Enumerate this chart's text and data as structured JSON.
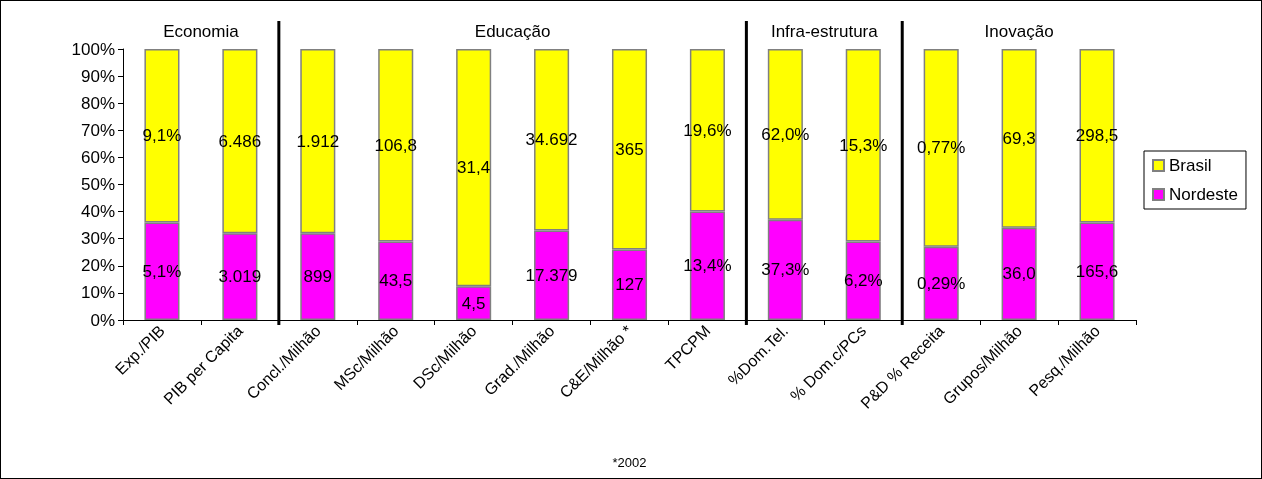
{
  "chart_data": {
    "type": "bar",
    "stacked": true,
    "categories": [
      "Exp./PIB",
      "PIB per Capita",
      "Concl./Milhão",
      "MSc/Milhão",
      "DSc/Milhão",
      "Grad./Milhão",
      "C&E/Milhão *",
      "TPCPM",
      "%Dom.Tel.",
      "% Dom.c/PCs",
      "P&D % Receita",
      "Grupos/Milhão",
      "Pesq./Milhão"
    ],
    "series": [
      {
        "name": "Nordeste",
        "color": "#ff00ff",
        "values": [
          36,
          32,
          32,
          29,
          12.5,
          33,
          26,
          40,
          37,
          29,
          27,
          34,
          36
        ]
      },
      {
        "name": "Brasil",
        "color": "#ffff00",
        "values": [
          64,
          68,
          68,
          71,
          87.5,
          67,
          74,
          60,
          63,
          71,
          73,
          66,
          64
        ]
      }
    ],
    "ylim": [
      0,
      100
    ],
    "yticks": [
      {
        "value": 0,
        "label": "0%"
      },
      {
        "value": 10,
        "label": "10%"
      },
      {
        "value": 20,
        "label": "20%"
      },
      {
        "value": 30,
        "label": "30%"
      },
      {
        "value": 40,
        "label": "40%"
      },
      {
        "value": 50,
        "label": "50%"
      },
      {
        "value": 60,
        "label": "60%"
      },
      {
        "value": 70,
        "label": "70%"
      },
      {
        "value": 80,
        "label": "80%"
      },
      {
        "value": 90,
        "label": "90%"
      },
      {
        "value": 100,
        "label": "100%"
      }
    ],
    "grid": false,
    "legend": "right",
    "annotations": [
      "Economia",
      "Educação",
      "Infra-estrutura",
      "Inovação",
      "*2002",
      "5,1%",
      "9,1%",
      "3.019",
      "6.486",
      "899",
      "1.912",
      "43,5",
      "106,8",
      "4,5",
      "31,4",
      "17.379",
      "34.692",
      "127",
      "365",
      "13,4%",
      "19,6%",
      "37,3%",
      "62,0%",
      "6,2%",
      "15,3%",
      "0,29%",
      "0,77%",
      "36,0",
      "69,3",
      "165,6",
      "298,5"
    ]
  }
}
